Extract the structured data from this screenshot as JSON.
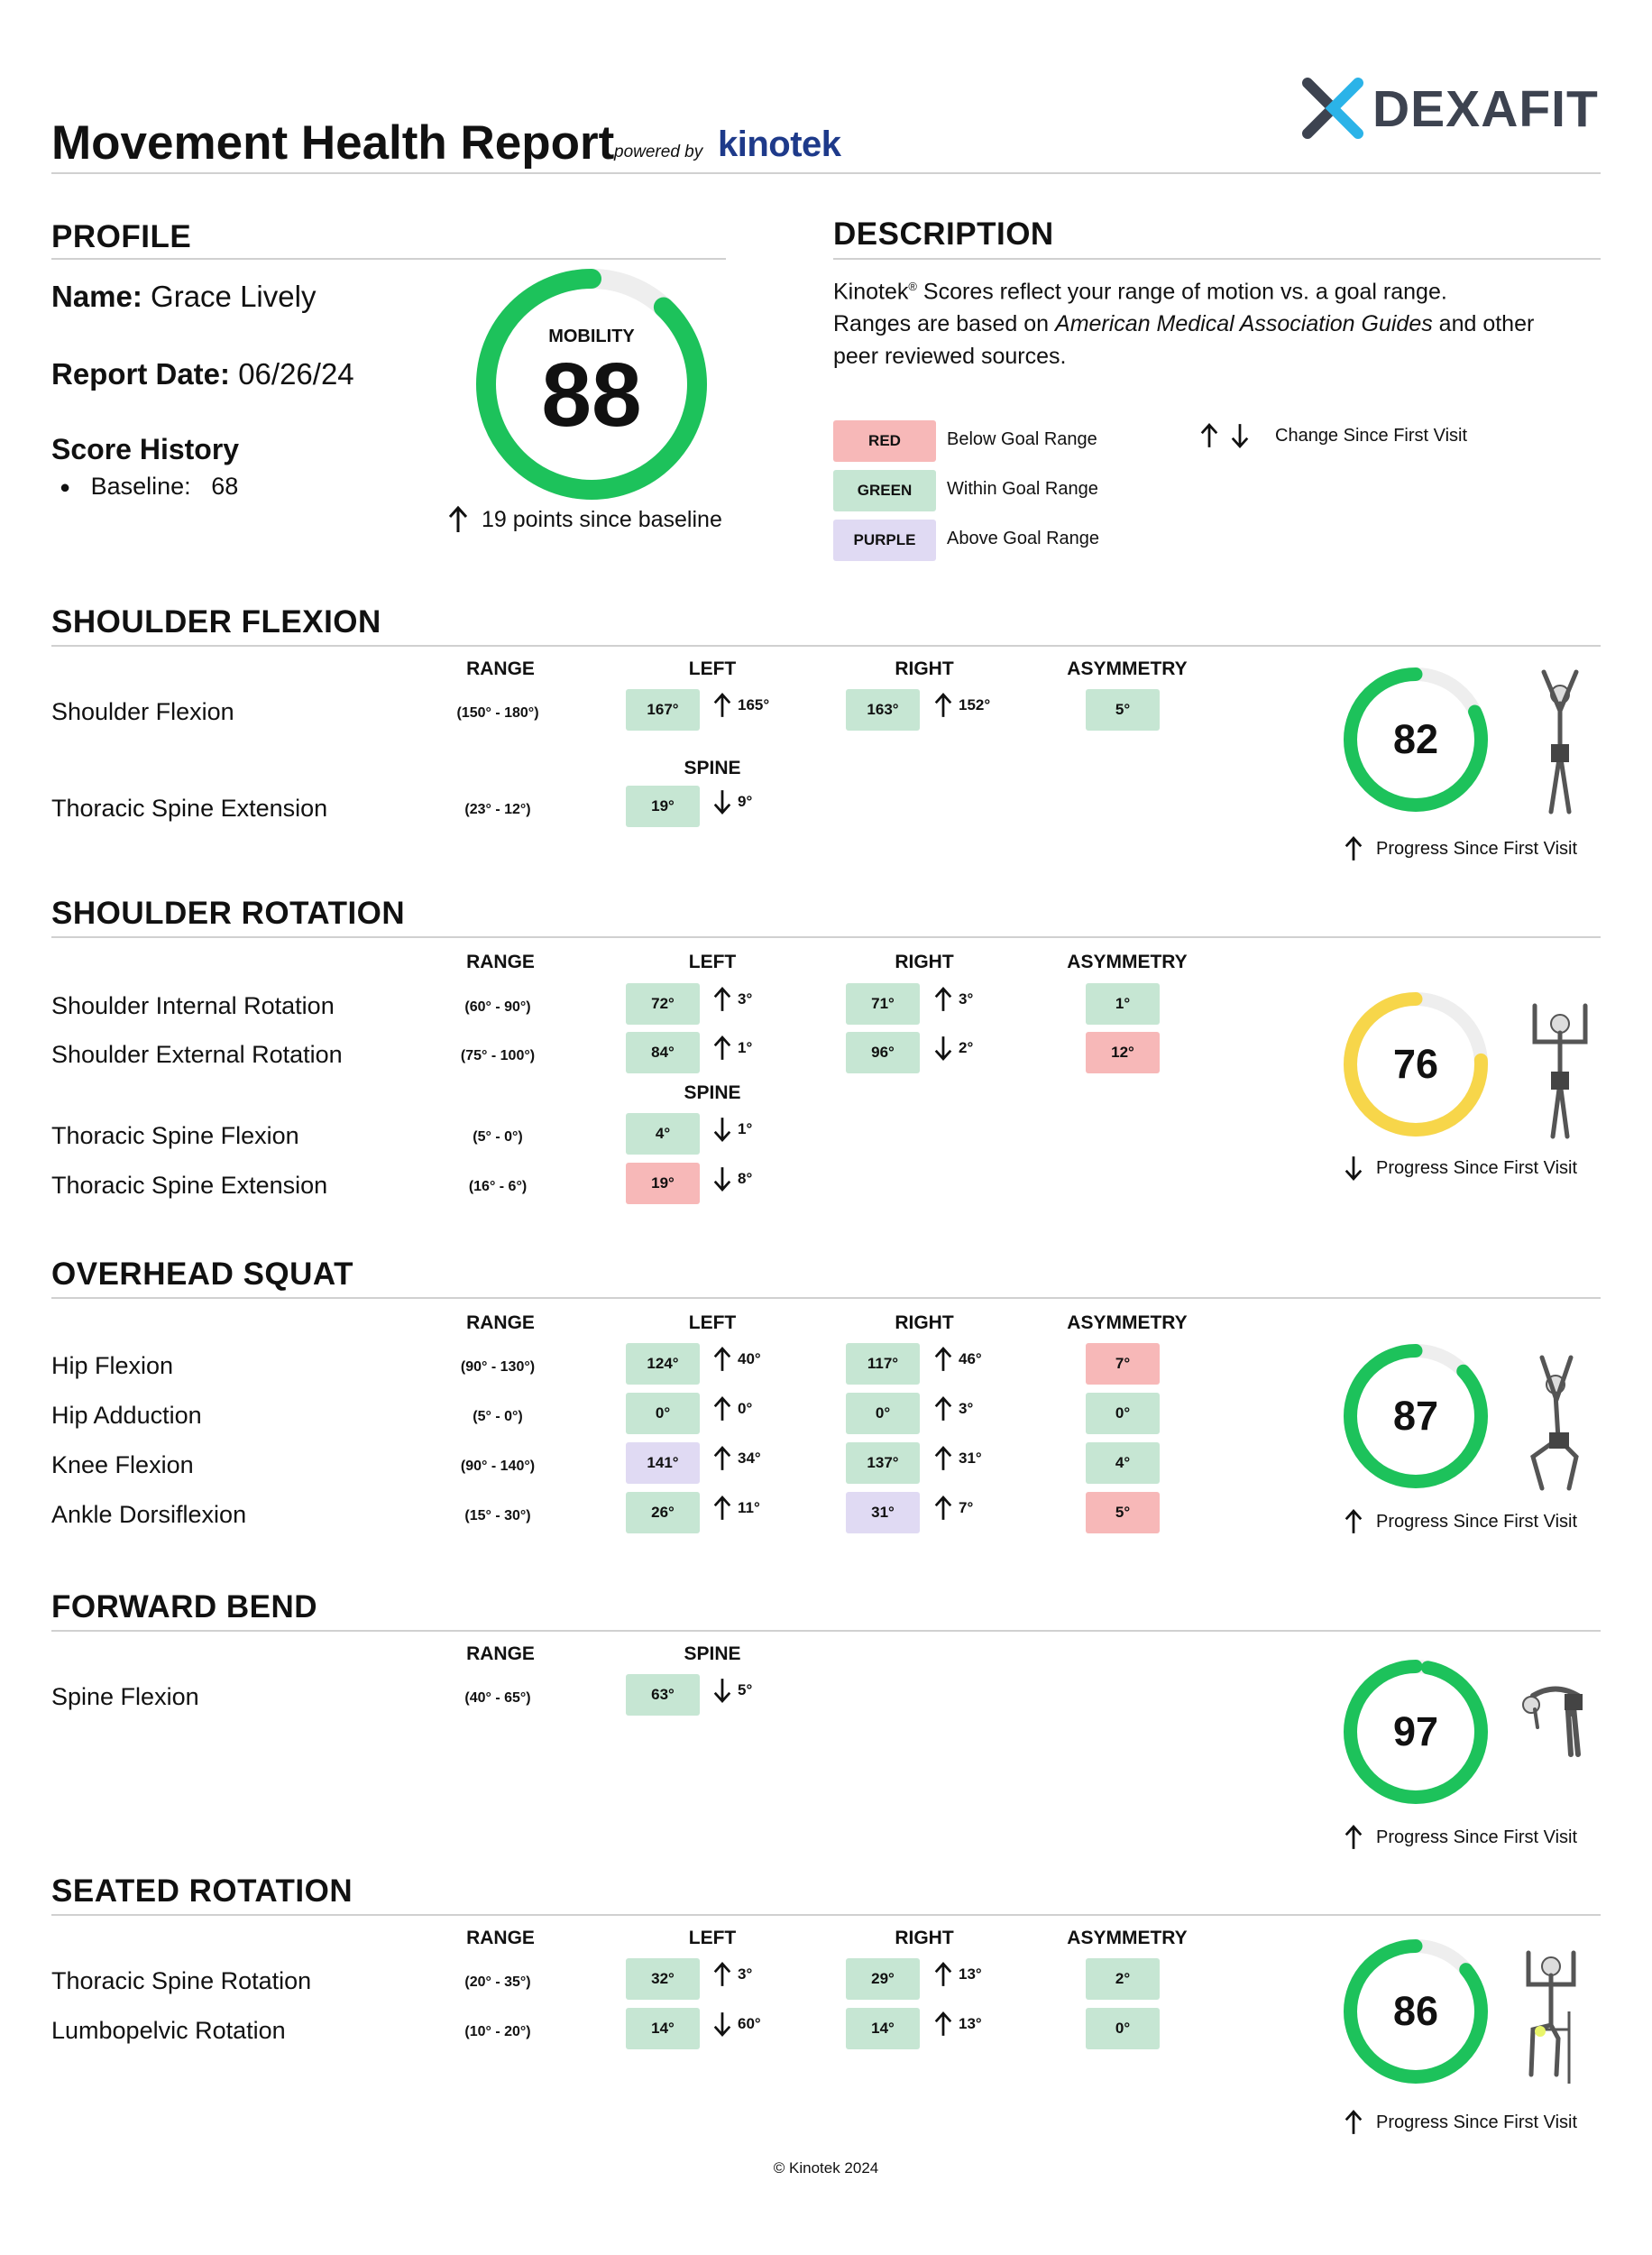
{
  "header": {
    "title": "Movement Health Report",
    "powered_by": "powered by",
    "kinotek_logo": "kinotek",
    "brand_logo": "DEXAFIT"
  },
  "profile": {
    "heading": "PROFILE",
    "name_label": "Name:",
    "name": "Grace Lively",
    "date_label": "Report Date:",
    "date": "06/26/24",
    "history_heading": "Score History",
    "baseline_label": "Baseline:",
    "baseline_value": "68"
  },
  "mobility": {
    "label": "MOBILITY",
    "score": 88,
    "since": "19 points since baseline",
    "color": "#1dc25b"
  },
  "description": {
    "heading": "DESCRIPTION",
    "line1a": "Kinotek",
    "reg": "®",
    "line1b": " Scores reflect your range of motion vs. a goal range.",
    "line2a": "Ranges are based on ",
    "line2_italic": "American Medical Association Guides",
    "line2b": " and other",
    "line3": "peer reviewed sources.",
    "legend": [
      {
        "tag": "RED",
        "text": "Below Goal Range",
        "color": "#f7b8b8"
      },
      {
        "tag": "GREEN",
        "text": "Within Goal Range",
        "color": "#c6e6d3"
      },
      {
        "tag": "PURPLE",
        "text": "Above Goal Range",
        "color": "#e0daf3"
      }
    ],
    "change_legend": "Change Since First Visit"
  },
  "columns": {
    "range": "RANGE",
    "left": "LEFT",
    "right": "RIGHT",
    "asym": "ASYMMETRY",
    "spine": "SPINE"
  },
  "sections": [
    {
      "title": "SHOULDER FLEXION",
      "score": 82,
      "color": "#1dc25b",
      "progress": "Progress Since First Visit",
      "progress_dir": "up",
      "rows": [
        {
          "label": "Shoulder Flexion",
          "range": "(150° - 180°)",
          "left": "167°",
          "left_c": "g",
          "left_dir": "up",
          "left_chg": "165°",
          "right": "163°",
          "right_c": "g",
          "right_dir": "up",
          "right_chg": "152°",
          "asym": "5°",
          "asym_c": "g"
        },
        {
          "label": "Thoracic Spine Extension",
          "range": "(23° - 12°)",
          "left": "19°",
          "left_c": "g",
          "left_dir": "down",
          "left_chg": "9°"
        }
      ]
    },
    {
      "title": "SHOULDER ROTATION",
      "score": 76,
      "color": "#f7d64a",
      "progress": "Progress Since First Visit",
      "progress_dir": "down",
      "rows": [
        {
          "label": "Shoulder Internal Rotation",
          "range": "(60° - 90°)",
          "left": "72°",
          "left_c": "g",
          "left_dir": "up",
          "left_chg": "3°",
          "right": "71°",
          "right_c": "g",
          "right_dir": "up",
          "right_chg": "3°",
          "asym": "1°",
          "asym_c": "g"
        },
        {
          "label": "Shoulder External Rotation",
          "range": "(75° - 100°)",
          "left": "84°",
          "left_c": "g",
          "left_dir": "up",
          "left_chg": "1°",
          "right": "96°",
          "right_c": "g",
          "right_dir": "down",
          "right_chg": "2°",
          "asym": "12°",
          "asym_c": "r"
        },
        {
          "label": "Thoracic Spine Flexion",
          "range": "(5° - 0°)",
          "left": "4°",
          "left_c": "g",
          "left_dir": "down",
          "left_chg": "1°"
        },
        {
          "label": "Thoracic Spine Extension",
          "range": "(16° - 6°)",
          "left": "19°",
          "left_c": "r",
          "left_dir": "down",
          "left_chg": "8°"
        }
      ]
    },
    {
      "title": "OVERHEAD SQUAT",
      "score": 87,
      "color": "#1dc25b",
      "progress": "Progress Since First Visit",
      "progress_dir": "up",
      "rows": [
        {
          "label": "Hip Flexion",
          "range": "(90° - 130°)",
          "left": "124°",
          "left_c": "g",
          "left_dir": "up",
          "left_chg": "40°",
          "right": "117°",
          "right_c": "g",
          "right_dir": "up",
          "right_chg": "46°",
          "asym": "7°",
          "asym_c": "r"
        },
        {
          "label": "Hip Adduction",
          "range": "(5° - 0°)",
          "left": "0°",
          "left_c": "g",
          "left_dir": "up",
          "left_chg": "0°",
          "right": "0°",
          "right_c": "g",
          "right_dir": "up",
          "right_chg": "3°",
          "asym": "0°",
          "asym_c": "g"
        },
        {
          "label": "Knee Flexion",
          "range": "(90° - 140°)",
          "left": "141°",
          "left_c": "p",
          "left_dir": "up",
          "left_chg": "34°",
          "right": "137°",
          "right_c": "g",
          "right_dir": "up",
          "right_chg": "31°",
          "asym": "4°",
          "asym_c": "g"
        },
        {
          "label": "Ankle Dorsiflexion",
          "range": "(15° - 30°)",
          "left": "26°",
          "left_c": "g",
          "left_dir": "up",
          "left_chg": "11°",
          "right": "31°",
          "right_c": "p",
          "right_dir": "up",
          "right_chg": "7°",
          "asym": "5°",
          "asym_c": "r"
        }
      ]
    },
    {
      "title": "FORWARD BEND",
      "score": 97,
      "color": "#1dc25b",
      "progress": "Progress Since First Visit",
      "progress_dir": "up",
      "rows": [
        {
          "label": "Spine Flexion",
          "range": "(40° - 65°)",
          "left": "63°",
          "left_c": "g",
          "left_dir": "down",
          "left_chg": "5°"
        }
      ]
    },
    {
      "title": "SEATED ROTATION",
      "score": 86,
      "color": "#1dc25b",
      "progress": "Progress Since First Visit",
      "progress_dir": "up",
      "rows": [
        {
          "label": "Thoracic Spine Rotation",
          "range": "(20° - 35°)",
          "left": "32°",
          "left_c": "g",
          "left_dir": "up",
          "left_chg": "3°",
          "right": "29°",
          "right_c": "g",
          "right_dir": "up",
          "right_chg": "13°",
          "asym": "2°",
          "asym_c": "g"
        },
        {
          "label": "Lumbopelvic Rotation",
          "range": "(10° - 20°)",
          "left": "14°",
          "left_c": "g",
          "left_dir": "down",
          "left_chg": "60°",
          "right": "14°",
          "right_c": "g",
          "right_dir": "up",
          "right_chg": "13°",
          "asym": "0°",
          "asym_c": "g"
        }
      ]
    }
  ],
  "footer": "© Kinotek 2024"
}
